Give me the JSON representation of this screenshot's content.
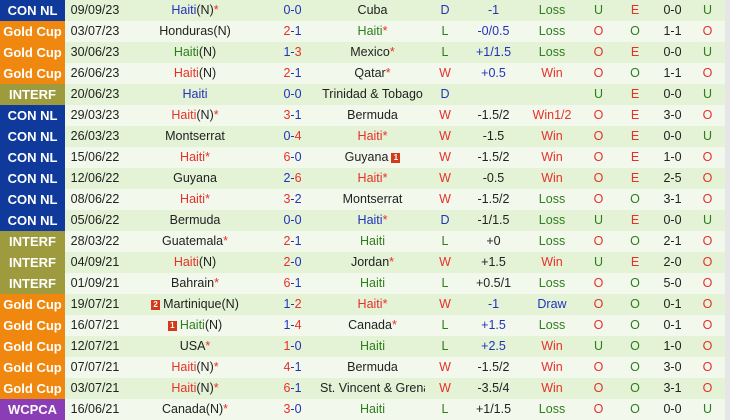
{
  "colors": {
    "CON NL": "#0f3a9c",
    "Gold Cup": "#f0880f",
    "INTERF": "#9e9b3e",
    "WCPCA": "#8b3db6",
    "red": "#e8302a",
    "green": "#2e7d1e",
    "blue": "#2233bb"
  },
  "rows": [
    {
      "comp": "CON NL",
      "date": "09/09/23",
      "home": {
        "name": "Haiti",
        "color": "blue",
        "suffix": "(N)",
        "star": "*"
      },
      "score": [
        "0",
        "-",
        "0"
      ],
      "score_colors": [
        "blue",
        "blue"
      ],
      "away": {
        "name": "Cuba",
        "color": "dark",
        "suffix": "",
        "star": ""
      },
      "wl": "D",
      "hc": "-1",
      "hc_color": "blue",
      "res": "Loss",
      "ou": "U",
      "eo": "E",
      "ht": "0-0",
      "uo": "U"
    },
    {
      "comp": "Gold Cup",
      "date": "03/07/23",
      "home": {
        "name": "Honduras",
        "color": "dark",
        "suffix": "(N)",
        "star": ""
      },
      "score": [
        "2",
        "-",
        "1"
      ],
      "score_colors": [
        "red",
        "blue"
      ],
      "away": {
        "name": "Haiti",
        "color": "green",
        "suffix": "",
        "star": "*"
      },
      "wl": "L",
      "hc": "-0/0.5",
      "hc_color": "blue",
      "res": "Loss",
      "ou": "O",
      "eo": "O",
      "ht": "1-1",
      "uo": "O"
    },
    {
      "comp": "Gold Cup",
      "date": "30/06/23",
      "home": {
        "name": "Haiti",
        "color": "green",
        "suffix": "(N)",
        "star": ""
      },
      "score": [
        "1",
        "-",
        "3"
      ],
      "score_colors": [
        "blue",
        "red"
      ],
      "away": {
        "name": "Mexico",
        "color": "dark",
        "suffix": "",
        "star": "*"
      },
      "wl": "L",
      "hc": "+1/1.5",
      "hc_color": "blue",
      "res": "Loss",
      "ou": "O",
      "eo": "E",
      "ht": "0-0",
      "uo": "U"
    },
    {
      "comp": "Gold Cup",
      "date": "26/06/23",
      "home": {
        "name": "Haiti",
        "color": "red",
        "suffix": "(N)",
        "star": ""
      },
      "score": [
        "2",
        "-",
        "1"
      ],
      "score_colors": [
        "red",
        "blue"
      ],
      "away": {
        "name": "Qatar",
        "color": "dark",
        "suffix": "",
        "star": "*"
      },
      "wl": "W",
      "hc": "+0.5",
      "hc_color": "blue",
      "res": "Win",
      "ou": "O",
      "eo": "O",
      "ht": "1-1",
      "uo": "O"
    },
    {
      "comp": "INTERF",
      "date": "20/06/23",
      "home": {
        "name": "Haiti",
        "color": "blue",
        "suffix": "",
        "star": ""
      },
      "score": [
        "0",
        "-",
        "0"
      ],
      "score_colors": [
        "blue",
        "blue"
      ],
      "away": {
        "name": "Trinidad & Tobago",
        "color": "dark",
        "suffix": "",
        "star": ""
      },
      "wl": "D",
      "hc": "",
      "hc_color": "dark",
      "res": "",
      "ou": "U",
      "eo": "E",
      "ht": "0-0",
      "uo": "U"
    },
    {
      "comp": "CON NL",
      "date": "29/03/23",
      "home": {
        "name": "Haiti",
        "color": "red",
        "suffix": "(N)",
        "star": "*"
      },
      "score": [
        "3",
        "-",
        "1"
      ],
      "score_colors": [
        "red",
        "blue"
      ],
      "away": {
        "name": "Bermuda",
        "color": "dark",
        "suffix": "",
        "star": ""
      },
      "wl": "W",
      "hc": "-1.5/2",
      "hc_color": "dark",
      "res": "Win1/2",
      "ou": "O",
      "eo": "E",
      "ht": "3-0",
      "uo": "O"
    },
    {
      "comp": "CON NL",
      "date": "26/03/23",
      "home": {
        "name": "Montserrat",
        "color": "dark",
        "suffix": "",
        "star": ""
      },
      "score": [
        "0",
        "-",
        "4"
      ],
      "score_colors": [
        "blue",
        "red"
      ],
      "away": {
        "name": "Haiti",
        "color": "red",
        "suffix": "",
        "star": "*"
      },
      "wl": "W",
      "hc": "-1.5",
      "hc_color": "dark",
      "res": "Win",
      "ou": "O",
      "eo": "E",
      "ht": "0-0",
      "uo": "U"
    },
    {
      "comp": "CON NL",
      "date": "15/06/22",
      "home": {
        "name": "Haiti",
        "color": "red",
        "suffix": "",
        "star": "*"
      },
      "score": [
        "6",
        "-",
        "0"
      ],
      "score_colors": [
        "red",
        "blue"
      ],
      "away": {
        "name": "Guyana",
        "color": "dark",
        "suffix": "",
        "star": "",
        "card_after": "1"
      },
      "wl": "W",
      "hc": "-1.5/2",
      "hc_color": "dark",
      "res": "Win",
      "ou": "O",
      "eo": "E",
      "ht": "1-0",
      "uo": "O"
    },
    {
      "comp": "CON NL",
      "date": "12/06/22",
      "home": {
        "name": "Guyana",
        "color": "dark",
        "suffix": "",
        "star": ""
      },
      "score": [
        "2",
        "-",
        "6"
      ],
      "score_colors": [
        "blue",
        "red"
      ],
      "away": {
        "name": "Haiti",
        "color": "red",
        "suffix": "",
        "star": "*"
      },
      "wl": "W",
      "hc": "-0.5",
      "hc_color": "dark",
      "res": "Win",
      "ou": "O",
      "eo": "E",
      "ht": "2-5",
      "uo": "O"
    },
    {
      "comp": "CON NL",
      "date": "08/06/22",
      "home": {
        "name": "Haiti",
        "color": "red",
        "suffix": "",
        "star": "*"
      },
      "score": [
        "3",
        "-",
        "2"
      ],
      "score_colors": [
        "red",
        "blue"
      ],
      "away": {
        "name": "Montserrat",
        "color": "dark",
        "suffix": "",
        "star": ""
      },
      "wl": "W",
      "hc": "-1.5/2",
      "hc_color": "dark",
      "res": "Loss",
      "ou": "O",
      "eo": "O",
      "ht": "3-1",
      "uo": "O"
    },
    {
      "comp": "CON NL",
      "date": "05/06/22",
      "home": {
        "name": "Bermuda",
        "color": "dark",
        "suffix": "",
        "star": ""
      },
      "score": [
        "0",
        "-",
        "0"
      ],
      "score_colors": [
        "blue",
        "blue"
      ],
      "away": {
        "name": "Haiti",
        "color": "blue",
        "suffix": "",
        "star": "*"
      },
      "wl": "D",
      "hc": "-1/1.5",
      "hc_color": "dark",
      "res": "Loss",
      "ou": "U",
      "eo": "E",
      "ht": "0-0",
      "uo": "U"
    },
    {
      "comp": "INTERF",
      "date": "28/03/22",
      "home": {
        "name": "Guatemala",
        "color": "dark",
        "suffix": "",
        "star": "*"
      },
      "score": [
        "2",
        "-",
        "1"
      ],
      "score_colors": [
        "red",
        "blue"
      ],
      "away": {
        "name": "Haiti",
        "color": "green",
        "suffix": "",
        "star": ""
      },
      "wl": "L",
      "hc": "+0",
      "hc_color": "dark",
      "res": "Loss",
      "ou": "O",
      "eo": "O",
      "ht": "2-1",
      "uo": "O"
    },
    {
      "comp": "INTERF",
      "date": "04/09/21",
      "home": {
        "name": "Haiti",
        "color": "red",
        "suffix": "(N)",
        "star": ""
      },
      "score": [
        "2",
        "-",
        "0"
      ],
      "score_colors": [
        "red",
        "blue"
      ],
      "away": {
        "name": "Jordan",
        "color": "dark",
        "suffix": "",
        "star": "*"
      },
      "wl": "W",
      "hc": "+1.5",
      "hc_color": "dark",
      "res": "Win",
      "ou": "U",
      "eo": "E",
      "ht": "2-0",
      "uo": "O"
    },
    {
      "comp": "INTERF",
      "date": "01/09/21",
      "home": {
        "name": "Bahrain",
        "color": "dark",
        "suffix": "",
        "star": "*"
      },
      "score": [
        "6",
        "-",
        "1"
      ],
      "score_colors": [
        "red",
        "blue"
      ],
      "away": {
        "name": "Haiti",
        "color": "green",
        "suffix": "",
        "star": ""
      },
      "wl": "L",
      "hc": "+0.5/1",
      "hc_color": "dark",
      "res": "Loss",
      "ou": "O",
      "eo": "O",
      "ht": "5-0",
      "uo": "O"
    },
    {
      "comp": "Gold Cup",
      "date": "19/07/21",
      "home": {
        "name": "Martinique",
        "color": "dark",
        "suffix": "(N)",
        "star": "",
        "card": "2"
      },
      "score": [
        "1",
        "-",
        "2"
      ],
      "score_colors": [
        "blue",
        "red"
      ],
      "away": {
        "name": "Haiti",
        "color": "red",
        "suffix": "",
        "star": "*"
      },
      "wl": "W",
      "hc": "-1",
      "hc_color": "blue",
      "res": "Draw",
      "ou": "O",
      "eo": "O",
      "ht": "0-1",
      "uo": "O"
    },
    {
      "comp": "Gold Cup",
      "date": "16/07/21",
      "home": {
        "name": "Haiti",
        "color": "green",
        "suffix": "(N)",
        "star": "",
        "card": "1"
      },
      "score": [
        "1",
        "-",
        "4"
      ],
      "score_colors": [
        "blue",
        "red"
      ],
      "away": {
        "name": "Canada",
        "color": "dark",
        "suffix": "",
        "star": "*"
      },
      "wl": "L",
      "hc": "+1.5",
      "hc_color": "blue",
      "res": "Loss",
      "ou": "O",
      "eo": "O",
      "ht": "0-1",
      "uo": "O"
    },
    {
      "comp": "Gold Cup",
      "date": "12/07/21",
      "home": {
        "name": "USA",
        "color": "dark",
        "suffix": "",
        "star": "*"
      },
      "score": [
        "1",
        "-",
        "0"
      ],
      "score_colors": [
        "red",
        "blue"
      ],
      "away": {
        "name": "Haiti",
        "color": "green",
        "suffix": "",
        "star": ""
      },
      "wl": "L",
      "hc": "+2.5",
      "hc_color": "blue",
      "res": "Win",
      "ou": "U",
      "eo": "O",
      "ht": "1-0",
      "uo": "O"
    },
    {
      "comp": "Gold Cup",
      "date": "07/07/21",
      "home": {
        "name": "Haiti",
        "color": "red",
        "suffix": "(N)",
        "star": "*"
      },
      "score": [
        "4",
        "-",
        "1"
      ],
      "score_colors": [
        "red",
        "blue"
      ],
      "away": {
        "name": "Bermuda",
        "color": "dark",
        "suffix": "",
        "star": ""
      },
      "wl": "W",
      "hc": "-1.5/2",
      "hc_color": "dark",
      "res": "Win",
      "ou": "O",
      "eo": "O",
      "ht": "3-0",
      "uo": "O"
    },
    {
      "comp": "Gold Cup",
      "date": "03/07/21",
      "home": {
        "name": "Haiti",
        "color": "red",
        "suffix": "(N)",
        "star": "*"
      },
      "score": [
        "6",
        "-",
        "1"
      ],
      "score_colors": [
        "red",
        "blue"
      ],
      "away": {
        "name": "St. Vincent & Grenadines",
        "color": "dark",
        "suffix": "",
        "star": ""
      },
      "wl": "W",
      "hc": "-3.5/4",
      "hc_color": "dark",
      "res": "Win",
      "ou": "O",
      "eo": "O",
      "ht": "3-1",
      "uo": "O"
    },
    {
      "comp": "WCPCA",
      "date": "16/06/21",
      "home": {
        "name": "Canada",
        "color": "dark",
        "suffix": "(N)",
        "star": "*"
      },
      "score": [
        "3",
        "-",
        "0"
      ],
      "score_colors": [
        "red",
        "blue"
      ],
      "away": {
        "name": "Haiti",
        "color": "green",
        "suffix": "",
        "star": ""
      },
      "wl": "L",
      "hc": "+1/1.5",
      "hc_color": "dark",
      "res": "Loss",
      "ou": "O",
      "eo": "O",
      "ht": "0-0",
      "uo": "U"
    }
  ]
}
